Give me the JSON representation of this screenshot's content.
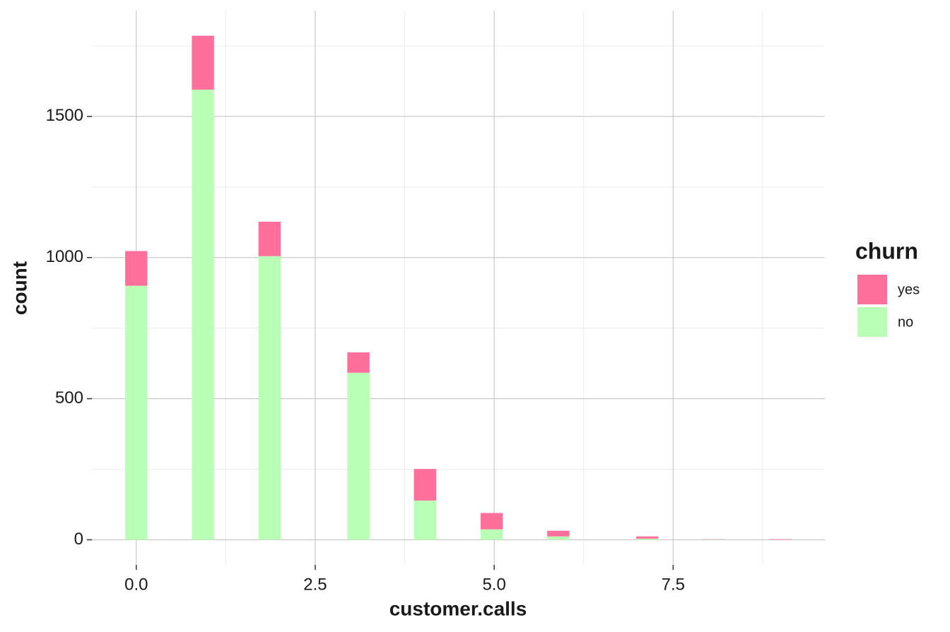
{
  "chart_data": {
    "type": "histogram",
    "x_label": "customer.calls",
    "y_label": "count",
    "legend_title": "churn",
    "bins": [
      -0.155,
      0.155,
      0.466,
      0.776,
      1.086,
      1.397,
      1.707,
      2.017,
      2.328,
      2.638,
      2.948,
      3.259,
      3.569,
      3.879,
      4.19,
      4.5,
      4.81,
      5.121,
      5.431,
      5.741,
      6.052,
      6.362,
      6.672,
      6.983,
      7.293,
      7.603,
      7.914,
      8.224,
      8.534,
      8.845,
      9.155
    ],
    "series": [
      {
        "name": "yes",
        "color": "#ff6f9c",
        "values": [
          123,
          0,
          0,
          191,
          0,
          0,
          122,
          0,
          0,
          0,
          72,
          0,
          0,
          112,
          0,
          0,
          58,
          0,
          0,
          20,
          0,
          0,
          0,
          8,
          0,
          0,
          1,
          0,
          0,
          2
        ]
      },
      {
        "name": "no",
        "color": "#b9ffb5",
        "values": [
          900,
          0,
          0,
          1595,
          0,
          0,
          1005,
          0,
          0,
          0,
          592,
          0,
          0,
          139,
          0,
          0,
          37,
          0,
          0,
          12,
          0,
          0,
          0,
          4,
          0,
          0,
          1,
          0,
          0,
          0
        ]
      }
    ],
    "stacked": true,
    "xlim": [
      -0.62,
      9.62
    ],
    "ylim": [
      -89,
      1875
    ],
    "xticks": [
      {
        "value": 0,
        "label": "0.0"
      },
      2.5,
      {
        "value": 5,
        "label": "5.0"
      },
      7.5
    ],
    "yticks": [
      0,
      500,
      1000,
      1500
    ],
    "x_minor_grid": [
      1.25,
      3.75,
      6.25,
      8.75
    ],
    "y_minor_grid": [
      250,
      750,
      1250,
      1750
    ],
    "grid": true,
    "legend_position": "right"
  }
}
